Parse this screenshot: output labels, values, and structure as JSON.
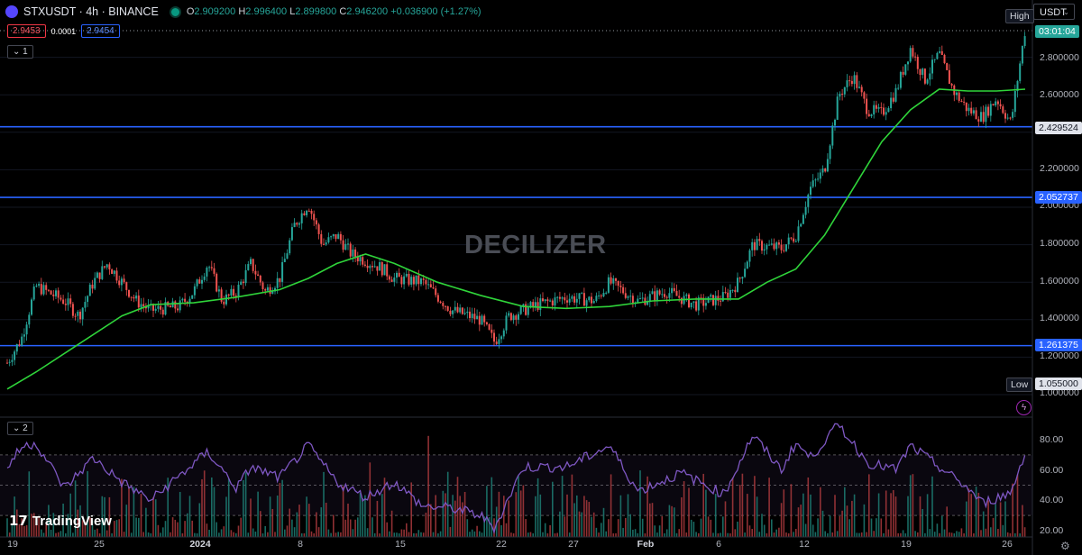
{
  "header": {
    "symbol": "STXUSDT · 4h · BINANCE",
    "ohlc": {
      "open_label": "O",
      "open": "2.909200",
      "high_label": "H",
      "high": "2.996400",
      "low_label": "L",
      "low": "2.899800",
      "close_label": "C",
      "close": "2.946200",
      "change": "+0.036900 (+1.27%)"
    },
    "sell_price": "2.9453",
    "spread": "0.0001",
    "buy_price": "2.9454",
    "main_pane_tag": "1",
    "indicator_pane_tag": "2",
    "currency": "USDT"
  },
  "watermark": "DECILIZER",
  "branding": "TradingView",
  "price_scale": {
    "labels": [
      "2.800000",
      "2.600000",
      "2.200000",
      "2.000000",
      "1.800000",
      "1.600000",
      "1.400000",
      "1.200000",
      "1.000000"
    ],
    "countdown": "03:01:04",
    "high_label": "High",
    "low_label": "Low",
    "low_value": "1.055000"
  },
  "rsi_scale": {
    "labels": [
      "80.00",
      "60.00",
      "40.00",
      "20.00"
    ]
  },
  "time_axis": {
    "labels": [
      "19",
      "25",
      "2024",
      "8",
      "15",
      "22",
      "27",
      "Feb",
      "6",
      "12",
      "19",
      "26"
    ]
  },
  "colors": {
    "up": "#26a69a",
    "down": "#ef5350",
    "ma": "#2fd43a",
    "levels": "#2962ff",
    "rsi": "#7e57c2",
    "background": "#000000"
  },
  "chart_data": {
    "type": "candlestick",
    "timeframe": "4h",
    "x_range": [
      "2023-12-19",
      "2024-02-28"
    ],
    "ylim": [
      1.0,
      3.0
    ],
    "horizontal_levels": [
      {
        "label": "2.429524",
        "value": 2.429524
      },
      {
        "label": "2.052737",
        "value": 2.052737
      },
      {
        "label": "1.261375",
        "value": 1.261375
      }
    ],
    "close_path": [
      {
        "x": "2023-12-19",
        "y": 1.17
      },
      {
        "x": "2023-12-20",
        "y": 1.3
      },
      {
        "x": "2023-12-21",
        "y": 1.58
      },
      {
        "x": "2023-12-23",
        "y": 1.5
      },
      {
        "x": "2023-12-24",
        "y": 1.42
      },
      {
        "x": "2023-12-25",
        "y": 1.6
      },
      {
        "x": "2023-12-26",
        "y": 1.7
      },
      {
        "x": "2023-12-28",
        "y": 1.5
      },
      {
        "x": "2023-12-29",
        "y": 1.45
      },
      {
        "x": "2023-12-31",
        "y": 1.47
      },
      {
        "x": "2024-01-01",
        "y": 1.55
      },
      {
        "x": "2024-01-02",
        "y": 1.7
      },
      {
        "x": "2024-01-03",
        "y": 1.5
      },
      {
        "x": "2024-01-04",
        "y": 1.55
      },
      {
        "x": "2024-01-05",
        "y": 1.7
      },
      {
        "x": "2024-01-06",
        "y": 1.55
      },
      {
        "x": "2024-01-07",
        "y": 1.62
      },
      {
        "x": "2024-01-08",
        "y": 1.9
      },
      {
        "x": "2024-01-09",
        "y": 2.02
      },
      {
        "x": "2024-01-10",
        "y": 1.8
      },
      {
        "x": "2024-01-11",
        "y": 1.85
      },
      {
        "x": "2024-01-12",
        "y": 1.75
      },
      {
        "x": "2024-01-14",
        "y": 1.68
      },
      {
        "x": "2024-01-15",
        "y": 1.62
      },
      {
        "x": "2024-01-17",
        "y": 1.6
      },
      {
        "x": "2024-01-19",
        "y": 1.45
      },
      {
        "x": "2024-01-21",
        "y": 1.4
      },
      {
        "x": "2024-01-22",
        "y": 1.28
      },
      {
        "x": "2024-01-23",
        "y": 1.42
      },
      {
        "x": "2024-01-25",
        "y": 1.48
      },
      {
        "x": "2024-01-27",
        "y": 1.52
      },
      {
        "x": "2024-01-29",
        "y": 1.5
      },
      {
        "x": "2024-01-30",
        "y": 1.6
      },
      {
        "x": "2024-02-01",
        "y": 1.5
      },
      {
        "x": "2024-02-03",
        "y": 1.55
      },
      {
        "x": "2024-02-05",
        "y": 1.48
      },
      {
        "x": "2024-02-07",
        "y": 1.52
      },
      {
        "x": "2024-02-08",
        "y": 1.6
      },
      {
        "x": "2024-02-09",
        "y": 1.8
      },
      {
        "x": "2024-02-11",
        "y": 1.78
      },
      {
        "x": "2024-02-12",
        "y": 1.85
      },
      {
        "x": "2024-02-13",
        "y": 2.1
      },
      {
        "x": "2024-02-14",
        "y": 2.2
      },
      {
        "x": "2024-02-15",
        "y": 2.6
      },
      {
        "x": "2024-02-16",
        "y": 2.7
      },
      {
        "x": "2024-02-17",
        "y": 2.52
      },
      {
        "x": "2024-02-18",
        "y": 2.5
      },
      {
        "x": "2024-02-19",
        "y": 2.62
      },
      {
        "x": "2024-02-20",
        "y": 2.85
      },
      {
        "x": "2024-02-21",
        "y": 2.68
      },
      {
        "x": "2024-02-22",
        "y": 2.82
      },
      {
        "x": "2024-02-23",
        "y": 2.62
      },
      {
        "x": "2024-02-24",
        "y": 2.52
      },
      {
        "x": "2024-02-25",
        "y": 2.48
      },
      {
        "x": "2024-02-26",
        "y": 2.58
      },
      {
        "x": "2024-02-27",
        "y": 2.45
      },
      {
        "x": "2024-02-28",
        "y": 2.95
      }
    ],
    "ma_path": [
      {
        "x": "2023-12-19",
        "y": 1.03
      },
      {
        "x": "2023-12-21",
        "y": 1.12
      },
      {
        "x": "2023-12-24",
        "y": 1.27
      },
      {
        "x": "2023-12-27",
        "y": 1.42
      },
      {
        "x": "2023-12-29",
        "y": 1.48
      },
      {
        "x": "2024-01-01",
        "y": 1.49
      },
      {
        "x": "2024-01-04",
        "y": 1.52
      },
      {
        "x": "2024-01-07",
        "y": 1.56
      },
      {
        "x": "2024-01-09",
        "y": 1.62
      },
      {
        "x": "2024-01-11",
        "y": 1.7
      },
      {
        "x": "2024-01-13",
        "y": 1.75
      },
      {
        "x": "2024-01-15",
        "y": 1.7
      },
      {
        "x": "2024-01-18",
        "y": 1.6
      },
      {
        "x": "2024-01-21",
        "y": 1.53
      },
      {
        "x": "2024-01-24",
        "y": 1.47
      },
      {
        "x": "2024-01-27",
        "y": 1.46
      },
      {
        "x": "2024-01-30",
        "y": 1.47
      },
      {
        "x": "2024-02-02",
        "y": 1.5
      },
      {
        "x": "2024-02-05",
        "y": 1.51
      },
      {
        "x": "2024-02-08",
        "y": 1.51
      },
      {
        "x": "2024-02-10",
        "y": 1.6
      },
      {
        "x": "2024-02-12",
        "y": 1.67
      },
      {
        "x": "2024-02-14",
        "y": 1.85
      },
      {
        "x": "2024-02-16",
        "y": 2.1
      },
      {
        "x": "2024-02-18",
        "y": 2.35
      },
      {
        "x": "2024-02-20",
        "y": 2.52
      },
      {
        "x": "2024-02-22",
        "y": 2.63
      },
      {
        "x": "2024-02-24",
        "y": 2.62
      },
      {
        "x": "2024-02-26",
        "y": 2.62
      },
      {
        "x": "2024-02-28",
        "y": 2.63
      }
    ],
    "rsi": {
      "ylim": [
        15,
        95
      ],
      "levels": [
        70,
        50,
        30
      ],
      "path": [
        {
          "x": "2023-12-19",
          "y": 62
        },
        {
          "x": "2023-12-20",
          "y": 75
        },
        {
          "x": "2023-12-21",
          "y": 78
        },
        {
          "x": "2023-12-23",
          "y": 48
        },
        {
          "x": "2023-12-25",
          "y": 68
        },
        {
          "x": "2023-12-27",
          "y": 52
        },
        {
          "x": "2023-12-29",
          "y": 40
        },
        {
          "x": "2024-01-02",
          "y": 72
        },
        {
          "x": "2024-01-04",
          "y": 48
        },
        {
          "x": "2024-01-05",
          "y": 62
        },
        {
          "x": "2024-01-07",
          "y": 55
        },
        {
          "x": "2024-01-09",
          "y": 76
        },
        {
          "x": "2024-01-11",
          "y": 52
        },
        {
          "x": "2024-01-13",
          "y": 42
        },
        {
          "x": "2024-01-15",
          "y": 52
        },
        {
          "x": "2024-01-17",
          "y": 36
        },
        {
          "x": "2024-01-19",
          "y": 35
        },
        {
          "x": "2024-01-21",
          "y": 30
        },
        {
          "x": "2024-01-22",
          "y": 22
        },
        {
          "x": "2024-01-24",
          "y": 62
        },
        {
          "x": "2024-01-27",
          "y": 62
        },
        {
          "x": "2024-01-30",
          "y": 76
        },
        {
          "x": "2024-02-01",
          "y": 46
        },
        {
          "x": "2024-02-04",
          "y": 58
        },
        {
          "x": "2024-02-07",
          "y": 44
        },
        {
          "x": "2024-02-09",
          "y": 83
        },
        {
          "x": "2024-02-11",
          "y": 60
        },
        {
          "x": "2024-02-12",
          "y": 78
        },
        {
          "x": "2024-02-13",
          "y": 68
        },
        {
          "x": "2024-02-15",
          "y": 90
        },
        {
          "x": "2024-02-17",
          "y": 65
        },
        {
          "x": "2024-02-19",
          "y": 60
        },
        {
          "x": "2024-02-20",
          "y": 76
        },
        {
          "x": "2024-02-22",
          "y": 62
        },
        {
          "x": "2024-02-24",
          "y": 48
        },
        {
          "x": "2024-02-25",
          "y": 38
        },
        {
          "x": "2024-02-27",
          "y": 45
        },
        {
          "x": "2024-02-28",
          "y": 72
        }
      ]
    },
    "volume_profile": "mixed green/red histogram bars behind RSI"
  }
}
